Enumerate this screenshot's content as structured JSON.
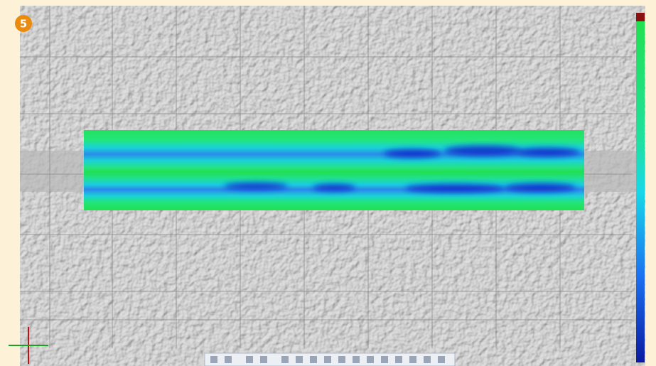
{
  "badge": "5"
}
